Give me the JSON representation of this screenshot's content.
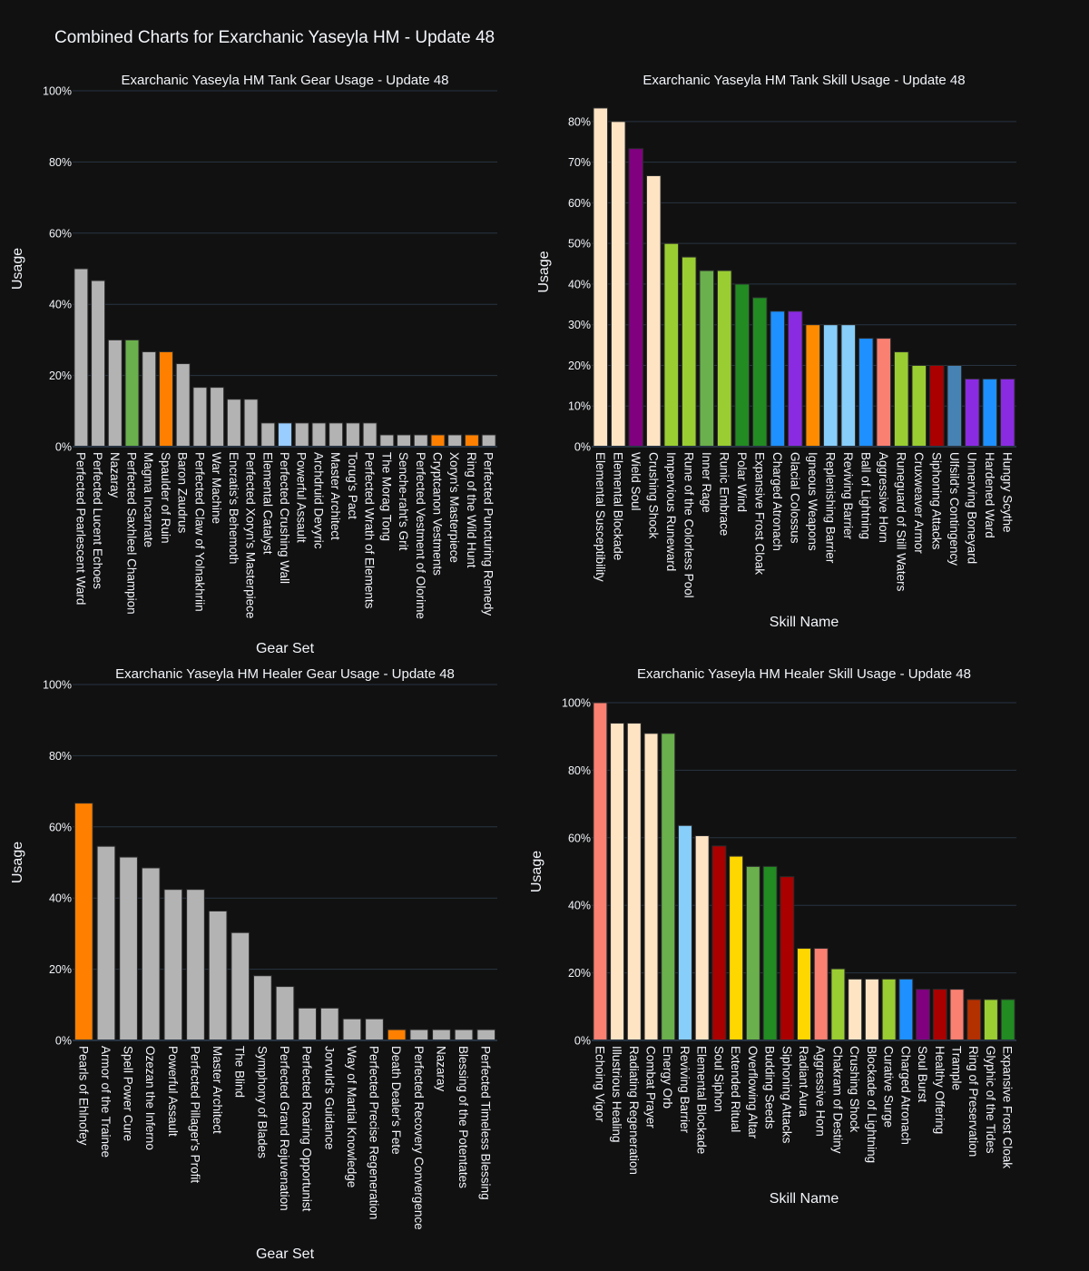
{
  "title": "Combined Charts for Exarchanic Yaseyla HM - Update 48",
  "chart_data": [
    {
      "id": "tank-gear",
      "type": "bar",
      "title": "Exarchanic Yaseyla HM Tank Gear Usage - Update 48",
      "xlabel": "Gear Set",
      "ylabel": "Usage",
      "ylim": [
        0,
        100
      ],
      "yticks": [
        0,
        20,
        40,
        60,
        80,
        100
      ],
      "tick_suffix": "%",
      "grid": true,
      "categories": [
        "Perfected Pearlescent Ward",
        "Perfected Lucent Echoes",
        "Nazaray",
        "Perfected Saxhleel Champion",
        "Magma Incarnate",
        "Spaulder of Ruin",
        "Baron Zaudrus",
        "Perfected Claw of Yolnakhriin",
        "War Machine",
        "Encratis's Behemoth",
        "Perfected Xoryn's Masterpiece",
        "Elemental Catalyst",
        "Perfected Crushing Wall",
        "Powerful Assault",
        "Archdruid Devyric",
        "Master Architect",
        "Torug's Pact",
        "Perfected Wrath of Elements",
        "The Morag Tong",
        "Senche-raht's Grit",
        "Perfected Vestment of Olorime",
        "Cryptcanon Vestments",
        "Xoryn's Masterpiece",
        "Ring of the Wild Hunt",
        "Perfected Puncturing Remedy"
      ],
      "values": [
        50.0,
        46.67,
        30.0,
        30.0,
        26.67,
        26.67,
        23.33,
        16.67,
        16.67,
        13.33,
        13.33,
        6.67,
        6.67,
        6.67,
        6.67,
        6.67,
        6.67,
        6.67,
        3.33,
        3.33,
        3.33,
        3.33,
        3.33,
        3.33,
        3.33
      ],
      "colors": [
        "#b3b3b3",
        "#b3b3b3",
        "#b3b3b3",
        "#6ab04c",
        "#b3b3b3",
        "#ff8000",
        "#b3b3b3",
        "#b3b3b3",
        "#b3b3b3",
        "#b3b3b3",
        "#b3b3b3",
        "#b3b3b3",
        "#99ccff",
        "#b3b3b3",
        "#b3b3b3",
        "#b3b3b3",
        "#b3b3b3",
        "#b3b3b3",
        "#b3b3b3",
        "#b3b3b3",
        "#b3b3b3",
        "#ff8000",
        "#b3b3b3",
        "#ff8000",
        "#b3b3b3"
      ]
    },
    {
      "id": "tank-skill",
      "type": "bar",
      "title": "Exarchanic Yaseyla HM Tank Skill Usage - Update 48",
      "xlabel": "Skill Name",
      "ylabel": "Usage",
      "ylim": [
        0,
        86
      ],
      "yticks": [
        0,
        10,
        20,
        30,
        40,
        50,
        60,
        70,
        80
      ],
      "tick_suffix": "%",
      "grid": true,
      "categories": [
        "Elemental Susceptibility",
        "Elemental Blockade",
        "Wield Soul",
        "Crushing Shock",
        "Impervious Runeward",
        "Rune of the Colorless Pool",
        "Inner Rage",
        "Runic Embrace",
        "Polar Wind",
        "Expansive Frost Cloak",
        "Charged Atronach",
        "Glacial Colossus",
        "Igneous Weapons",
        "Replenishing Barrier",
        "Reviving Barrier",
        "Ball of Lightning",
        "Aggressive Horn",
        "Runeguard of Still Waters",
        "Cruxweaver Armor",
        "Siphoning Attacks",
        "Ulfsild's Contingency",
        "Unnerving Boneyard",
        "Hardened Ward",
        "Hungry Scythe"
      ],
      "values": [
        83.33,
        80.0,
        73.33,
        66.67,
        50.0,
        46.67,
        43.33,
        43.33,
        40.0,
        36.67,
        33.33,
        33.33,
        30.0,
        30.0,
        30.0,
        26.67,
        26.67,
        23.33,
        20.0,
        20.0,
        20.0,
        16.67,
        16.67,
        16.67
      ],
      "colors": [
        "#ffe4c4",
        "#ffe4c4",
        "#800080",
        "#ffe4c4",
        "#9acd32",
        "#9acd32",
        "#6ab04c",
        "#9acd32",
        "#228b22",
        "#228b22",
        "#1e90ff",
        "#8a2be2",
        "#ff8c00",
        "#87cefa",
        "#87cefa",
        "#1e90ff",
        "#fa8072",
        "#9acd32",
        "#9acd32",
        "#aa0000",
        "#4682b4",
        "#8a2be2",
        "#1e90ff",
        "#8a2be2"
      ]
    },
    {
      "id": "healer-gear",
      "type": "bar",
      "title": "Exarchanic Yaseyla HM Healer Gear Usage - Update 48",
      "xlabel": "Gear Set",
      "ylabel": "Usage",
      "ylim": [
        0,
        100
      ],
      "yticks": [
        0,
        20,
        40,
        60,
        80,
        100
      ],
      "tick_suffix": "%",
      "grid": true,
      "categories": [
        "Pearls of Ehlnofey",
        "Armor of the Trainee",
        "Spell Power Cure",
        "Ozezan the Inferno",
        "Powerful Assault",
        "Perfected Pillager's Profit",
        "Master Architect",
        "The Blind",
        "Symphony of Blades",
        "Perfected Grand Rejuvenation",
        "Perfected Roaring Opportunist",
        "Jorvuld's Guidance",
        "Way of Martial Knowledge",
        "Perfected Precise Regeneration",
        "Death Dealer's Fete",
        "Perfected Recovery Convergence",
        "Nazaray",
        "Blessing of the Potentates",
        "Perfected Timeless Blessing"
      ],
      "values": [
        66.67,
        54.55,
        51.52,
        48.48,
        42.42,
        42.42,
        36.36,
        30.3,
        18.18,
        15.15,
        9.09,
        9.09,
        6.06,
        6.06,
        3.03,
        3.03,
        3.03,
        3.03,
        3.03
      ],
      "colors": [
        "#ff8000",
        "#b3b3b3",
        "#b3b3b3",
        "#b3b3b3",
        "#b3b3b3",
        "#b3b3b3",
        "#b3b3b3",
        "#b3b3b3",
        "#b3b3b3",
        "#b3b3b3",
        "#b3b3b3",
        "#b3b3b3",
        "#b3b3b3",
        "#b3b3b3",
        "#ff8000",
        "#b3b3b3",
        "#b3b3b3",
        "#b3b3b3",
        "#b3b3b3"
      ]
    },
    {
      "id": "healer-skill",
      "type": "bar",
      "title": "Exarchanic Yaseyla HM Healer Skill Usage - Update 48",
      "xlabel": "Skill Name",
      "ylabel": "Usage",
      "ylim": [
        0,
        100
      ],
      "yticks": [
        0,
        20,
        40,
        60,
        80,
        100
      ],
      "tick_suffix": "%",
      "grid": true,
      "categories": [
        "Echoing Vigor",
        "Illustrious Healing",
        "Radiating Regeneration",
        "Combat Prayer",
        "Energy Orb",
        "Reviving Barrier",
        "Elemental Blockade",
        "Soul Siphon",
        "Extended Ritual",
        "Overflowing Altar",
        "Budding Seeds",
        "Siphoning Attacks",
        "Radiant Aura",
        "Aggressive Horn",
        "Chakram of Destiny",
        "Crushing Shock",
        "Blockade of Lightning",
        "Curative Surge",
        "Charged Atronach",
        "Soul Burst",
        "Healthy Offering",
        "Trample",
        "Ring of Preservation",
        "Glyphic of the Tides",
        "Expansive Frost Cloak"
      ],
      "values": [
        100.0,
        93.94,
        93.94,
        90.91,
        90.91,
        63.64,
        60.61,
        57.58,
        54.55,
        51.52,
        51.52,
        48.48,
        27.27,
        27.27,
        21.21,
        18.18,
        18.18,
        18.18,
        18.18,
        15.15,
        15.15,
        15.15,
        12.12,
        12.12,
        12.12
      ],
      "colors": [
        "#fa8072",
        "#ffe4c4",
        "#ffe4c4",
        "#ffe4c4",
        "#6ab04c",
        "#87cefa",
        "#ffe4c4",
        "#aa0000",
        "#ffd700",
        "#6ab04c",
        "#228b22",
        "#aa0000",
        "#ffd700",
        "#fa8072",
        "#9acd32",
        "#ffe4c4",
        "#ffe4c4",
        "#9acd32",
        "#1e90ff",
        "#800080",
        "#aa0000",
        "#fa8072",
        "#b33000",
        "#9acd32",
        "#228b22"
      ]
    }
  ]
}
